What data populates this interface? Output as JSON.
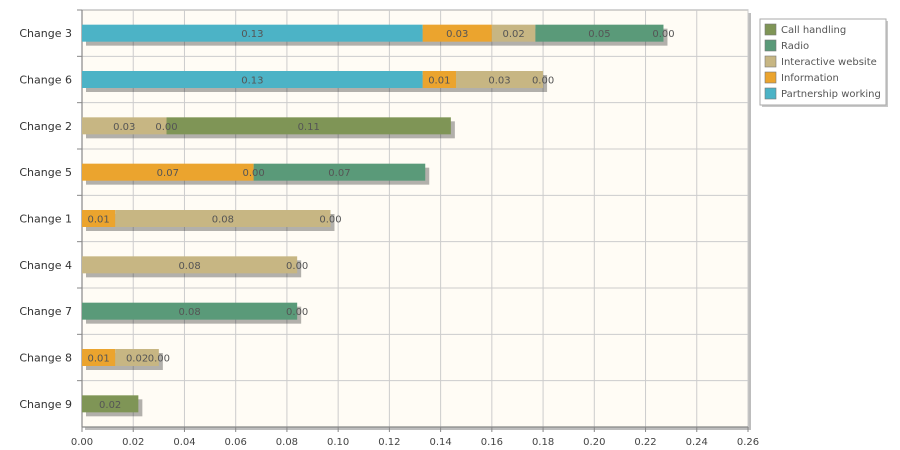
{
  "chart_data": {
    "type": "bar",
    "orientation": "horizontal",
    "stacked": true,
    "title": "",
    "xlabel": "",
    "ylabel": "",
    "xlim": [
      0,
      0.26
    ],
    "x_ticks": [
      "0.00",
      "0.02",
      "0.04",
      "0.06",
      "0.08",
      "0.10",
      "0.12",
      "0.14",
      "0.16",
      "0.18",
      "0.20",
      "0.22",
      "0.24",
      "0.26"
    ],
    "grid": true,
    "legend_position": "top-right",
    "categories": [
      "Change 3",
      "Change 6",
      "Change 2",
      "Change 5",
      "Change 1",
      "Change 4",
      "Change 7",
      "Change 8",
      "Change 9"
    ],
    "series": [
      {
        "name": "Partnership working",
        "color": "#4cb3c6",
        "values": [
          0.133,
          0.133,
          null,
          null,
          null,
          null,
          null,
          null,
          null
        ],
        "labels": [
          "0.13",
          "0.13",
          null,
          null,
          null,
          null,
          null,
          null,
          null
        ]
      },
      {
        "name": "Information",
        "color": "#eba42e",
        "values": [
          0.027,
          0.013,
          null,
          0.067,
          0.013,
          null,
          null,
          0.013,
          null
        ],
        "labels": [
          "0.03",
          "0.01",
          null,
          "0.07",
          "0.01",
          null,
          null,
          "0.01",
          null
        ]
      },
      {
        "name": "Interactive website",
        "color": "#c7b683",
        "values": [
          0.017,
          0.034,
          0.033,
          0.0,
          0.084,
          0.084,
          null,
          0.017,
          null
        ],
        "labels": [
          "0.02",
          "0.03",
          "0.03",
          "0.00",
          "0.08",
          "0.08",
          null,
          "0.02",
          null
        ]
      },
      {
        "name": "Radio",
        "color": "#5a9a79",
        "values": [
          0.05,
          0.0,
          0.0,
          0.067,
          0.0,
          0.0,
          0.084,
          0.0,
          null
        ],
        "labels": [
          "0.05",
          "0.00",
          "0.00",
          "0.07",
          "0.00",
          "0.00",
          "0.08",
          "0.00",
          null
        ]
      },
      {
        "name": "Call handling",
        "color": "#7f9556",
        "values": [
          0.0,
          null,
          0.111,
          null,
          null,
          null,
          0.0,
          null,
          0.022
        ],
        "labels": [
          "0.00",
          null,
          "0.11",
          null,
          null,
          null,
          "0.00",
          null,
          "0.02"
        ]
      }
    ],
    "legend_order": [
      "Call handling",
      "Radio",
      "Interactive website",
      "Information",
      "Partnership working"
    ]
  }
}
